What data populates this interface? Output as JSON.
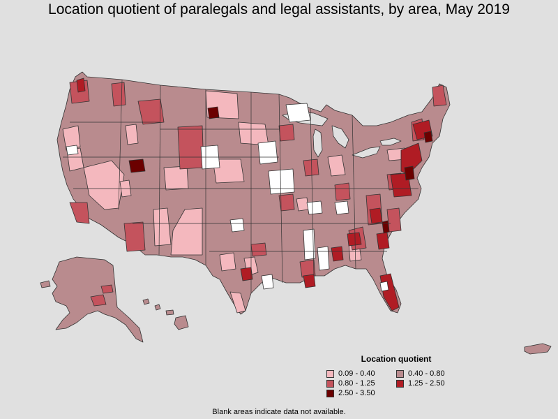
{
  "title": "Location quotient of paralegals and legal assistants, by area, May 2019",
  "legend": {
    "title": "Location quotient",
    "items": [
      {
        "label": "0.09 - 0.40",
        "color": "#f4b8be"
      },
      {
        "label": "0.40 - 0.80",
        "color": "#b98b8e"
      },
      {
        "label": "0.80 - 1.25",
        "color": "#c4535d"
      },
      {
        "label": "1.25 - 2.50",
        "color": "#b01c24"
      },
      {
        "label": "2.50 - 3.50",
        "color": "#6b0000"
      }
    ]
  },
  "footnote": "Blank areas indicate data not available."
}
